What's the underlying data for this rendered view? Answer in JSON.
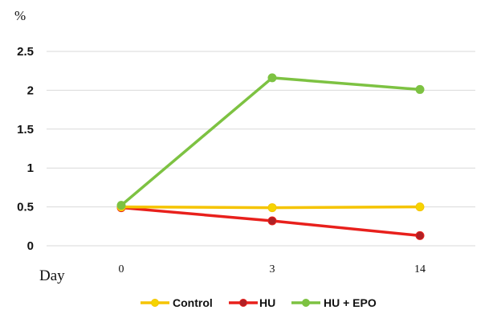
{
  "chart_data": {
    "type": "line",
    "ylabel": "%",
    "xlabel": "Day",
    "categories": [
      "0",
      "3",
      "14"
    ],
    "ylim": [
      0,
      2.5
    ],
    "yticks": [
      "0",
      "0.5",
      "1",
      "1.5",
      "2",
      "2.5"
    ],
    "grid": true,
    "legend_position": "bottom",
    "series": [
      {
        "name": "Control",
        "values": [
          0.5,
          0.49,
          0.5
        ],
        "color": "#F5C400",
        "marker_color": "#F5D400"
      },
      {
        "name": "HU",
        "values": [
          0.49,
          0.32,
          0.13
        ],
        "color": "#E8201C",
        "marker_color": "#B02025"
      },
      {
        "name": "HU + EPO",
        "values": [
          0.52,
          2.16,
          2.01
        ],
        "color": "#7DC242",
        "marker_color": "#7DC242"
      }
    ]
  }
}
